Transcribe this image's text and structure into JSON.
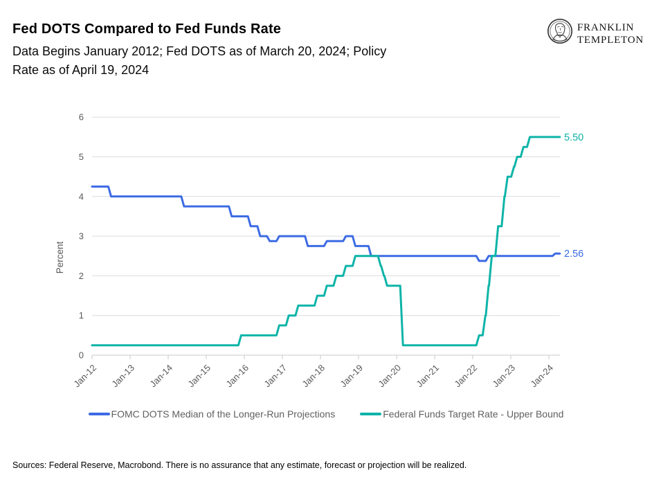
{
  "header": {
    "title": "Fed DOTS Compared to Fed Funds Rate",
    "subtitle_line1": "Data Begins January 2012; Fed DOTS as of March 20, 2024; Policy",
    "subtitle_line2": "Rate as of April 19, 2024",
    "logo": {
      "icon": "ben-franklin-portrait-icon",
      "line1": "FRANKLIN",
      "line2": "TEMPLETON"
    }
  },
  "chart_data": {
    "type": "line",
    "step": true,
    "title": "Fed DOTS Compared to Fed Funds Rate",
    "xlabel": "",
    "ylabel": "Percent",
    "ylim": [
      0,
      6
    ],
    "yticks": [
      0,
      1,
      2,
      3,
      4,
      5,
      6
    ],
    "xticks": [
      "Jan-12",
      "Jan-13",
      "Jan-14",
      "Jan-15",
      "Jan-16",
      "Jan-17",
      "Jan-18",
      "Jan-19",
      "Jan-20",
      "Jan-21",
      "Jan-22",
      "Jan-23",
      "Jan-24"
    ],
    "x_start": "2012-01",
    "x_end": "2024-04",
    "grid": "horizontal",
    "legend_position": "bottom",
    "colors": {
      "grid": "#dcdcdc",
      "axis": "#c9c9c9",
      "tick_text": "#595959"
    },
    "series": [
      {
        "name": "FOMC DOTS Median of the Longer-Run Projections",
        "color": "#3d6be4",
        "end_label": "2.56",
        "points": [
          [
            "2012-01",
            4.25
          ],
          [
            "2012-07",
            4.0
          ],
          [
            "2014-06",
            3.75
          ],
          [
            "2015-09",
            3.5
          ],
          [
            "2016-03",
            3.25
          ],
          [
            "2016-06",
            3.0
          ],
          [
            "2016-09",
            2.875
          ],
          [
            "2016-12",
            3.0
          ],
          [
            "2017-09",
            2.75
          ],
          [
            "2018-03",
            2.875
          ],
          [
            "2018-09",
            3.0
          ],
          [
            "2018-12",
            2.75
          ],
          [
            "2019-05",
            2.5
          ],
          [
            "2022-03",
            2.375
          ],
          [
            "2022-06",
            2.5
          ],
          [
            "2024-03",
            2.5625
          ]
        ]
      },
      {
        "name": "Federal Funds Target Rate - Upper Bound",
        "color": "#0db4a8",
        "end_label": "5.50",
        "points": [
          [
            "2012-01",
            0.25
          ],
          [
            "2015-12",
            0.5
          ],
          [
            "2016-12",
            0.75
          ],
          [
            "2017-03",
            1.0
          ],
          [
            "2017-06",
            1.25
          ],
          [
            "2017-12",
            1.5
          ],
          [
            "2018-03",
            1.75
          ],
          [
            "2018-06",
            2.0
          ],
          [
            "2018-09",
            2.25
          ],
          [
            "2018-12",
            2.5
          ],
          [
            "2019-08",
            2.25
          ],
          [
            "2019-09",
            2.0
          ],
          [
            "2019-10",
            1.75
          ],
          [
            "2020-03",
            0.25
          ],
          [
            "2022-03",
            0.5
          ],
          [
            "2022-05",
            1.0
          ],
          [
            "2022-06",
            1.75
          ],
          [
            "2022-07",
            2.5
          ],
          [
            "2022-09",
            3.25
          ],
          [
            "2022-11",
            4.0
          ],
          [
            "2022-12",
            4.5
          ],
          [
            "2023-02",
            4.75
          ],
          [
            "2023-03",
            5.0
          ],
          [
            "2023-05",
            5.25
          ],
          [
            "2023-07",
            5.5
          ]
        ]
      }
    ]
  },
  "footer": {
    "sources": "Sources: Federal Reserve, Macrobond. There is no assurance that any estimate, forecast or projection will be realized."
  }
}
